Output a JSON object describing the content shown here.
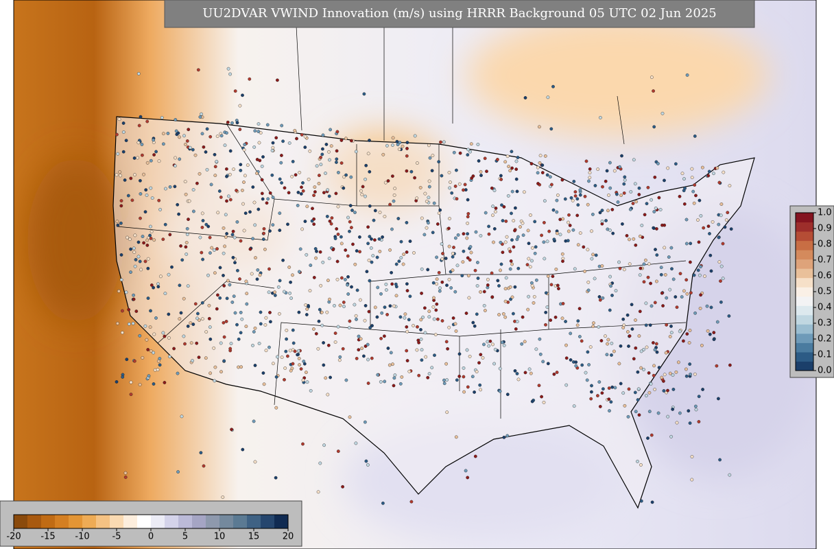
{
  "title": "UU2DVAR VWIND Innovation (m/s) using HRRR Background 05 UTC 02 Jun 2025",
  "vertical_colorbar": {
    "ticks": [
      {
        "value": 0,
        "label": "0.0"
      },
      0.1,
      0.2,
      0.3,
      0.4,
      0.5,
      0.6,
      0.7,
      0.8,
      0.9,
      {
        "value": 1,
        "label": "1.0"
      }
    ]
  },
  "horizontal_colorbar": {
    "ticks": [
      -20,
      -15,
      -10,
      -5,
      0,
      5,
      10,
      15,
      20
    ]
  }
}
